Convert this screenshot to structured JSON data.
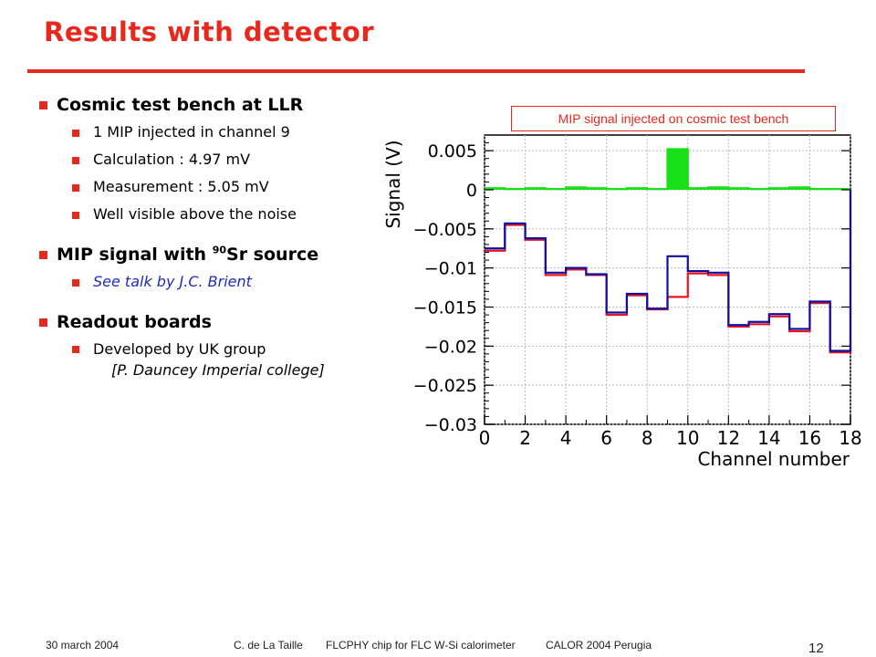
{
  "slide": {
    "title": "Results with detector",
    "sections": [
      {
        "heading": "Cosmic test bench at LLR",
        "items": [
          "1 MIP injected in channel 9",
          "Calculation : 4.97 mV",
          "Measurement : 5.05 mV",
          "Well visible above the noise"
        ]
      },
      {
        "heading_pre": "MIP signal with ",
        "heading_sup": "90",
        "heading_post": "Sr source",
        "items": [
          "See talk by J.C. Brient"
        ]
      },
      {
        "heading": "Readout boards",
        "items": [
          "Developed by UK group"
        ],
        "item_continuation": "[P. Dauncey Imperial college]"
      }
    ],
    "chart_caption": "MIP signal injected on cosmic test bench",
    "footer": {
      "date": "30 march 2004",
      "author": "C. de La Taille",
      "subject": "FLCPHY chip for FLC W-Si calorimeter",
      "conference": "CALOR 2004  Perugia",
      "page": "12"
    }
  },
  "chart_data": {
    "type": "line",
    "xlabel": "Channel number",
    "ylabel": "Signal (V)",
    "xlim": [
      0,
      18
    ],
    "ylim": [
      -0.03,
      0.007
    ],
    "x_ticks": [
      0,
      2,
      4,
      6,
      8,
      10,
      12,
      14,
      16,
      18
    ],
    "x_tick_labels": [
      "0",
      "2",
      "4",
      "6",
      "8",
      "10",
      "12",
      "14",
      "16",
      "18"
    ],
    "y_ticks": [
      0.005,
      0,
      -0.005,
      -0.01,
      -0.015,
      -0.02,
      -0.025,
      -0.03
    ],
    "y_tick_labels": [
      "0.005",
      "0",
      "−0.005",
      "−0.01",
      "−0.015",
      "−0.02",
      "−0.025",
      "−0.03"
    ],
    "grid": true,
    "x": [
      0,
      1,
      2,
      3,
      4,
      5,
      6,
      7,
      8,
      9,
      10,
      11,
      12,
      13,
      14,
      15,
      16,
      17
    ],
    "series": [
      {
        "color": "#e8141e",
        "step": true,
        "values": [
          -0.0078,
          -0.0045,
          -0.0064,
          -0.0109,
          -0.0102,
          -0.0109,
          -0.016,
          -0.0135,
          -0.0153,
          -0.0137,
          -0.0107,
          -0.0109,
          -0.0175,
          -0.0172,
          -0.0162,
          -0.0181,
          -0.0145,
          -0.0208
        ]
      },
      {
        "color": "#1010a0",
        "step": true,
        "values": [
          -0.0075,
          -0.0043,
          -0.0062,
          -0.0106,
          -0.01,
          -0.0108,
          -0.0157,
          -0.0133,
          -0.0152,
          -0.0085,
          -0.0104,
          -0.0106,
          -0.0173,
          -0.0169,
          -0.0159,
          -0.0178,
          -0.0143,
          -0.0206
        ]
      },
      {
        "color": "#18e018",
        "step": true,
        "fill": true,
        "values": [
          0.0002,
          0.0001,
          0.0002,
          0.0001,
          0.0003,
          0.0002,
          0.0001,
          0.0002,
          0.0001,
          0.0052,
          0.0002,
          0.0003,
          0.0002,
          0.0001,
          0.0002,
          0.0003,
          0.0001,
          0.0001
        ]
      }
    ]
  }
}
